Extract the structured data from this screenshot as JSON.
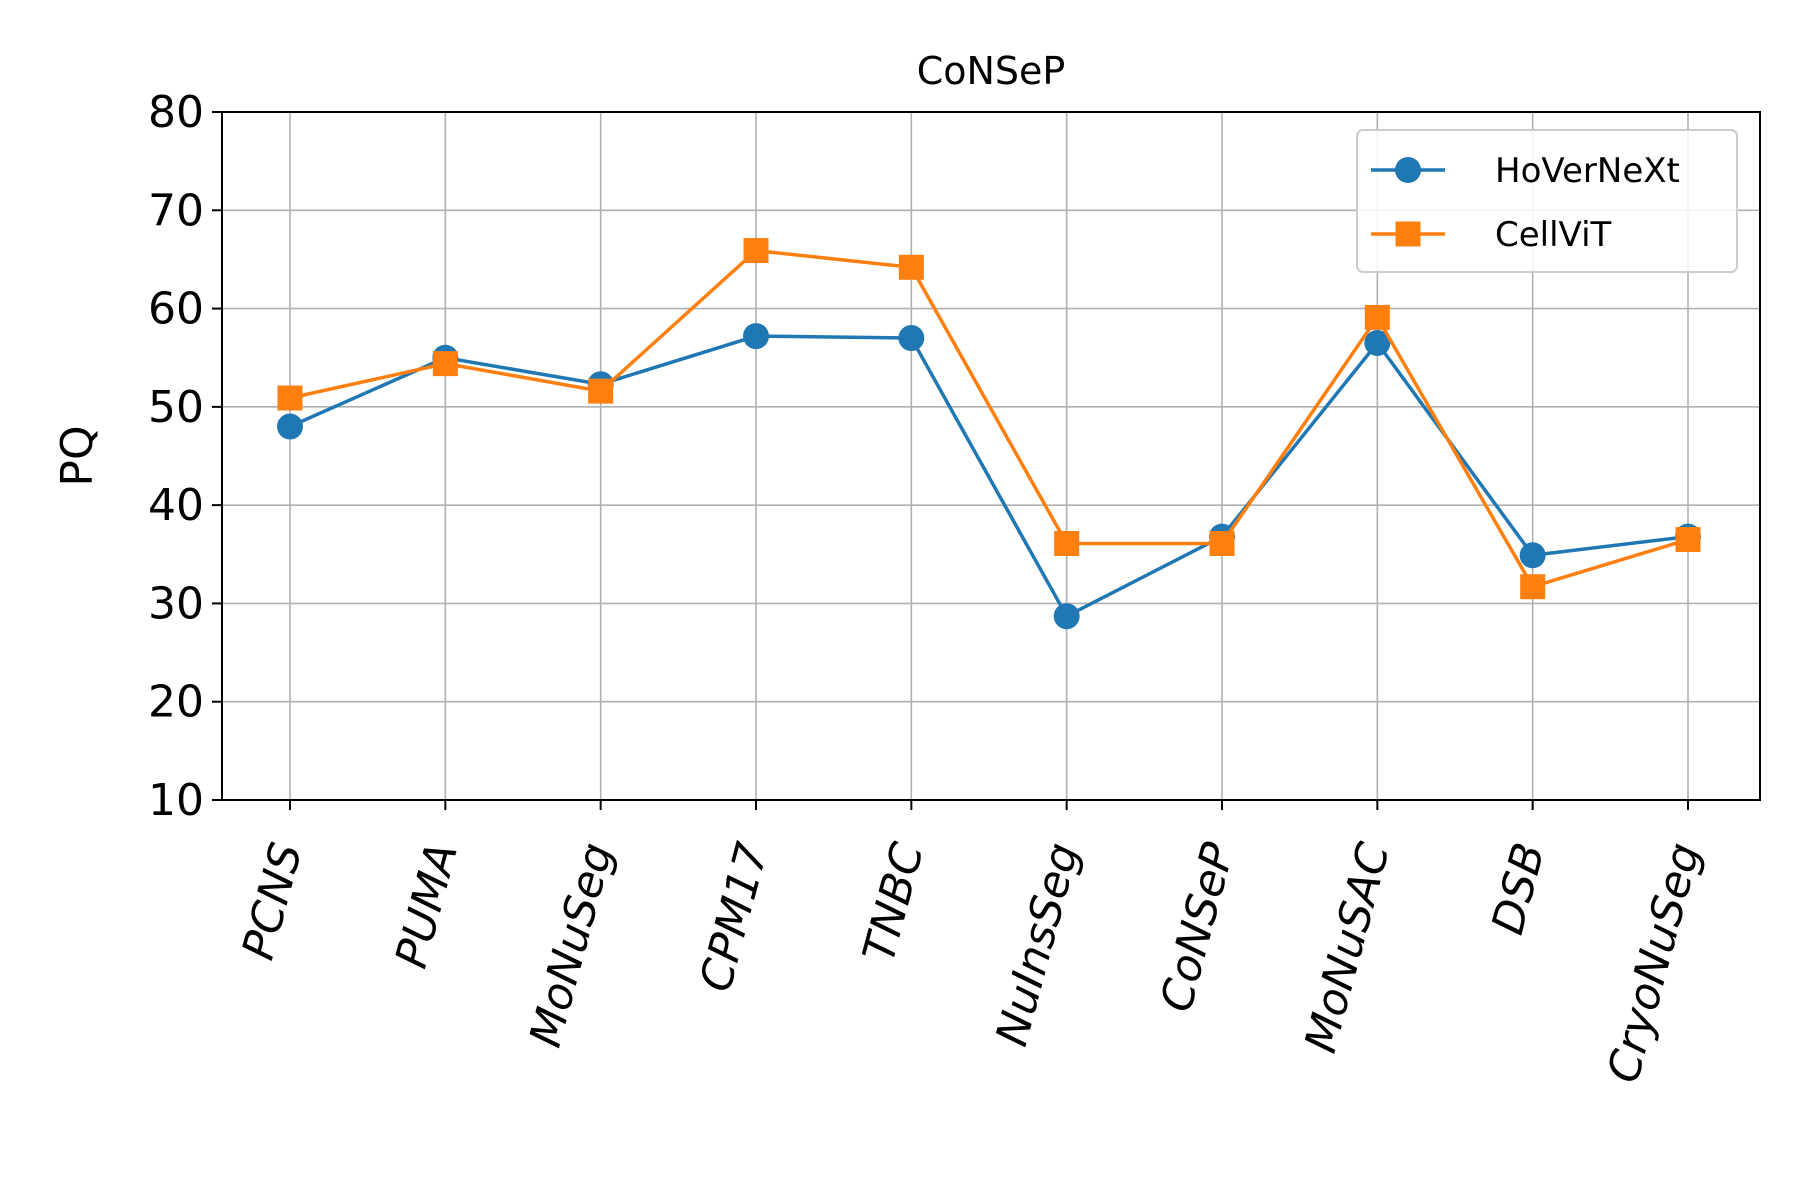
{
  "chart_data": {
    "type": "line",
    "title": "CoNSeP",
    "xlabel": "",
    "ylabel": "PQ",
    "ylim": [
      10,
      80
    ],
    "yticks": [
      10,
      20,
      30,
      40,
      50,
      60,
      70,
      80
    ],
    "grid": true,
    "legend_position": "top-right",
    "categories": [
      "PCNS",
      "PUMA",
      "MoNuSeg",
      "CPM17",
      "TNBC",
      "NuInsSeg",
      "CoNSeP",
      "MoNuSAC",
      "DSB",
      "CryoNuSeg"
    ],
    "series": [
      {
        "name": "HoVerNeXt",
        "marker": "circle",
        "color": "#1f77b4",
        "values": [
          48.0,
          55.0,
          52.3,
          57.2,
          57.0,
          28.7,
          36.8,
          56.5,
          34.9,
          36.8
        ]
      },
      {
        "name": "CellViT",
        "marker": "square",
        "color": "#ff7f0e",
        "values": [
          50.9,
          54.4,
          51.6,
          65.9,
          64.2,
          36.1,
          36.1,
          59.1,
          31.7,
          36.5
        ]
      }
    ]
  }
}
